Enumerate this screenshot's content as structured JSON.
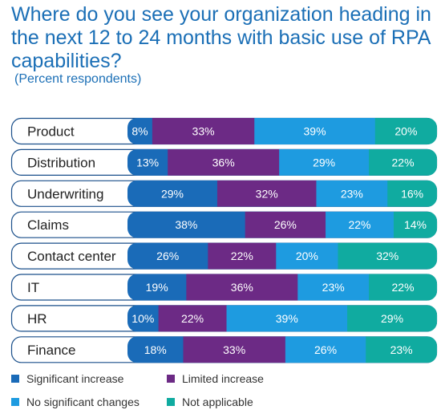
{
  "title": "Where do you see your organization heading in the next 12 to 24 months with basic use of RPA capabilities?",
  "subtitle": "(Percent respondents)",
  "colors": {
    "significant_increase": "#1a6bb8",
    "limited_increase": "#6c2a85",
    "no_significant_changes": "#1e9be0",
    "not_applicable": "#10aba0",
    "row_border": "#1a4f8a"
  },
  "chart_data": {
    "type": "bar",
    "orientation": "horizontal",
    "stacked": true,
    "unit": "%",
    "title": "Where do you see your organization heading in the next 12 to 24 months with basic use of RPA capabilities?",
    "subtitle": "(Percent respondents)",
    "categories": [
      "Product",
      "Distribution",
      "Underwriting",
      "Claims",
      "Contact center",
      "IT",
      "HR",
      "Finance"
    ],
    "series": [
      {
        "name": "Significant increase",
        "values": [
          8,
          13,
          29,
          38,
          26,
          19,
          10,
          18
        ]
      },
      {
        "name": "Limited increase",
        "values": [
          33,
          36,
          32,
          26,
          22,
          36,
          22,
          33
        ]
      },
      {
        "name": "No significant changes",
        "values": [
          39,
          29,
          23,
          22,
          20,
          23,
          39,
          26
        ]
      },
      {
        "name": "Not applicable",
        "values": [
          20,
          22,
          16,
          14,
          32,
          22,
          29,
          23
        ]
      }
    ],
    "legend_position": "bottom"
  }
}
